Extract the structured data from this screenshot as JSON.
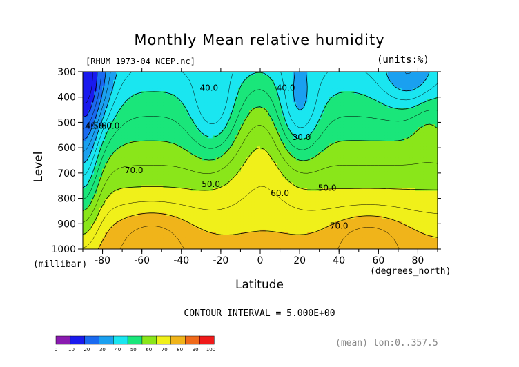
{
  "chart_data": {
    "type": "contour",
    "title": "Monthly Mean relative humidity",
    "subtitle_left": "[RHUM_1973-04_NCEP.nc]",
    "subtitle_right": "(units:%)",
    "xlabel": "Latitude",
    "x_unit": "(degrees_north)",
    "ylabel": "Level",
    "y_unit": "(millibar)",
    "xlim": [
      -90,
      90
    ],
    "ylim": [
      1000,
      300
    ],
    "x_ticks": [
      -80,
      -60,
      -40,
      -20,
      0,
      20,
      40,
      60,
      80
    ],
    "y_ticks": [
      300,
      400,
      500,
      600,
      700,
      800,
      900,
      1000
    ],
    "contour_interval_text": "CONTOUR INTERVAL = 5.000E+00",
    "footnote": "(mean) lon:0..357.5",
    "contour_labels": [
      {
        "text": "40.0",
        "lat": -26,
        "lev": 375
      },
      {
        "text": "40.0",
        "lat": 13,
        "lev": 375
      },
      {
        "text": "40.0",
        "lat": -84,
        "lev": 525
      },
      {
        "text": "50.0",
        "lat": -80,
        "lev": 525
      },
      {
        "text": "60.0",
        "lat": -76,
        "lev": 525
      },
      {
        "text": "30.0",
        "lat": 21,
        "lev": 570
      },
      {
        "text": "70.0",
        "lat": -64,
        "lev": 700
      },
      {
        "text": "50.0",
        "lat": -25,
        "lev": 755
      },
      {
        "text": "60.0",
        "lat": 10,
        "lev": 790
      },
      {
        "text": "50.0",
        "lat": 34,
        "lev": 770
      },
      {
        "text": "70.0",
        "lat": 40,
        "lev": 920
      }
    ],
    "colorbar": {
      "levels": [
        0,
        10,
        20,
        30,
        40,
        50,
        60,
        70,
        80,
        90,
        100
      ],
      "colors": [
        "#8a1ab0",
        "#1a1aee",
        "#1a6af0",
        "#1aa0f0",
        "#1ae6f0",
        "#1ae67a",
        "#8ae61a",
        "#f0f01a",
        "#f0b41a",
        "#f06a1a",
        "#f01a1a"
      ]
    }
  }
}
